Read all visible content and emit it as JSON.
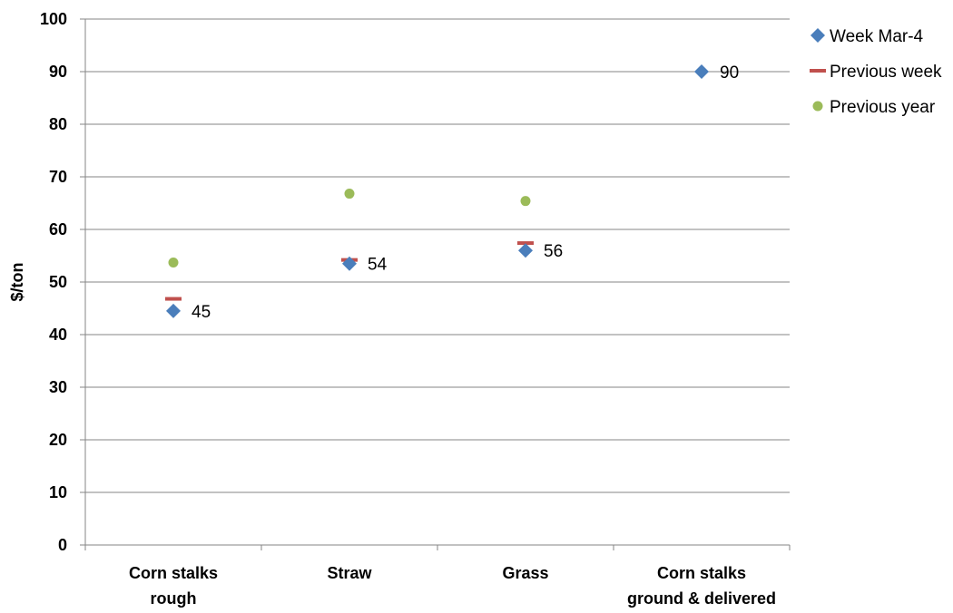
{
  "chart_data": {
    "type": "scatter",
    "title": "",
    "xlabel": "",
    "ylabel": "$/ton",
    "ylim": [
      0,
      100
    ],
    "yticks": [
      0,
      10,
      20,
      30,
      40,
      50,
      60,
      70,
      80,
      90,
      100
    ],
    "categories": [
      [
        "Corn stalks",
        "rough"
      ],
      [
        "Straw"
      ],
      [
        "Grass"
      ],
      [
        "Corn stalks",
        "ground & delivered"
      ]
    ],
    "grid": true,
    "legend_position": "top-right",
    "series": [
      {
        "name": "Week Mar-4",
        "marker": "diamond",
        "color": "#4a7ebb",
        "values": [
          44.5,
          53.5,
          56,
          90
        ],
        "labels": [
          "45",
          "54",
          "56",
          "90"
        ]
      },
      {
        "name": "Previous week",
        "marker": "dash",
        "color": "#c0504d",
        "values": [
          46.8,
          54.2,
          57.4,
          null
        ]
      },
      {
        "name": "Previous year",
        "marker": "circle",
        "color": "#9bbb59",
        "values": [
          53.7,
          66.8,
          65.4,
          null
        ]
      }
    ]
  }
}
